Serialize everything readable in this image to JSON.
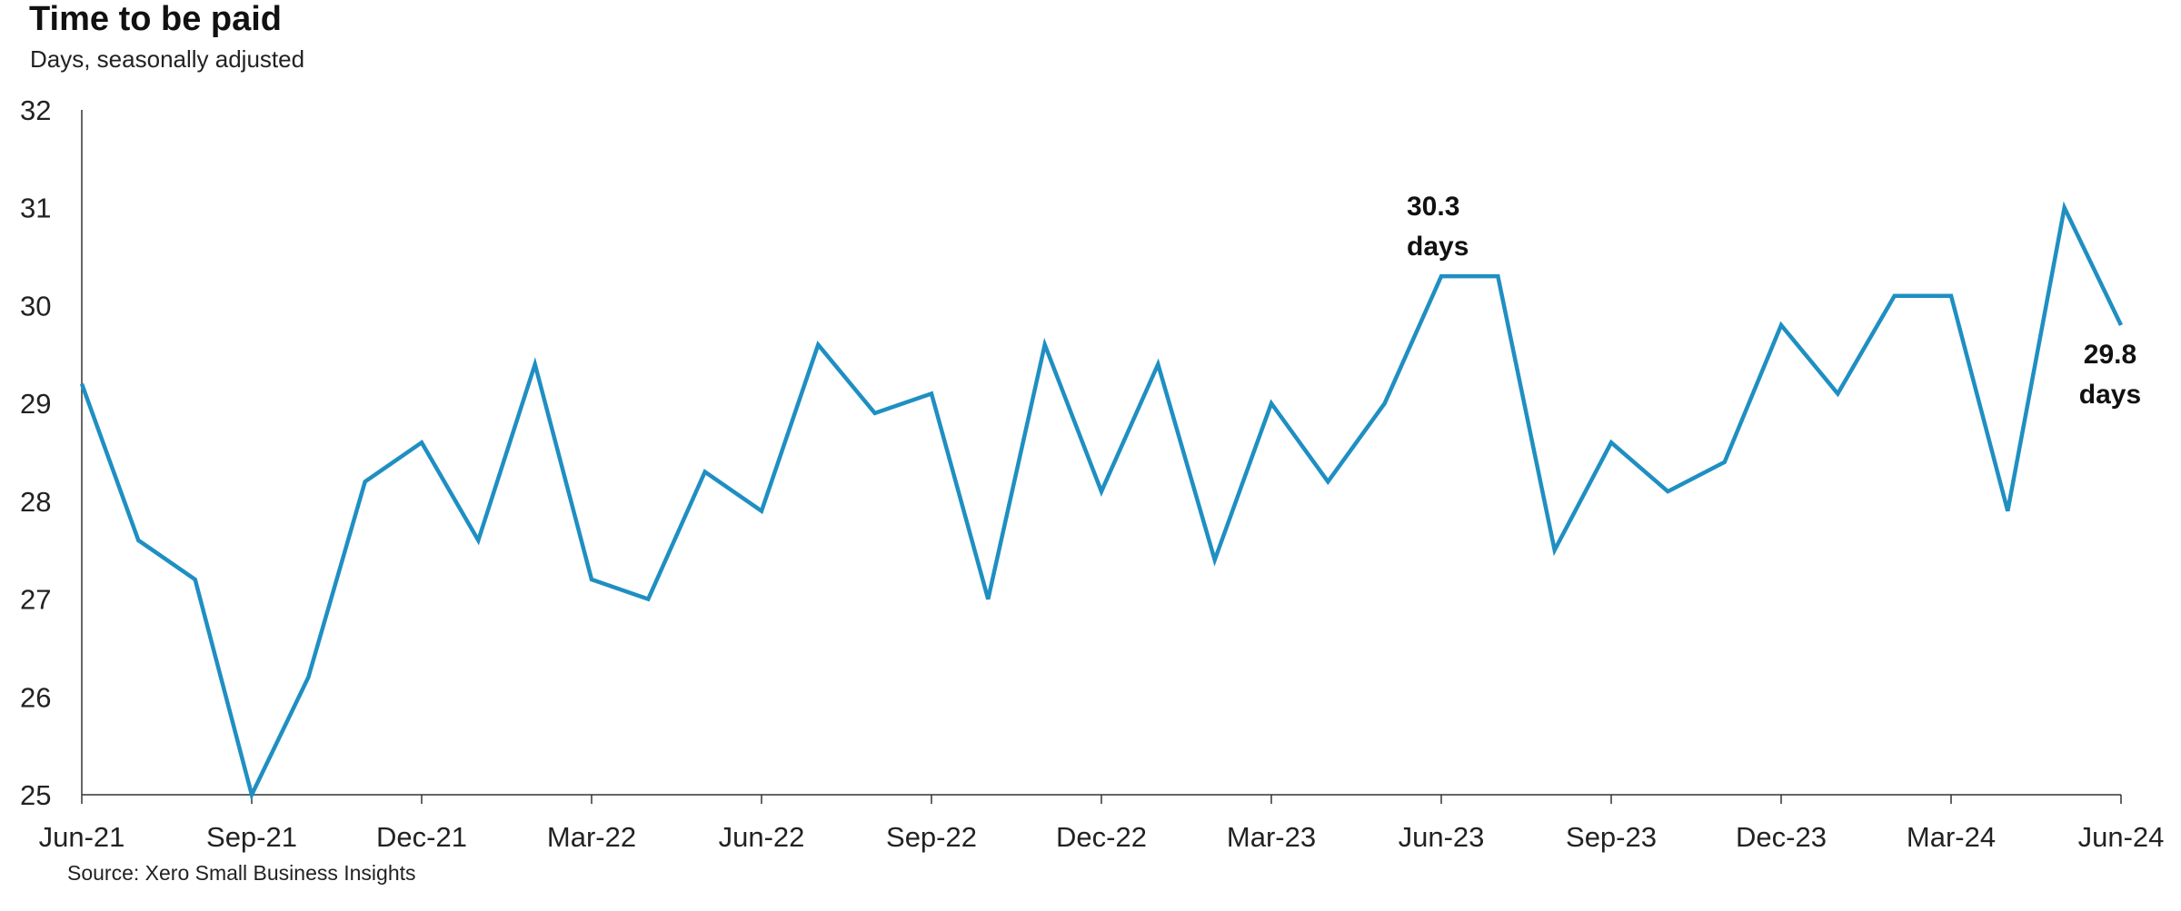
{
  "chart_data": {
    "type": "line",
    "title": "Time to be paid",
    "subtitle": "Days, seasonally adjusted",
    "source": "Source: Xero Small Business Insights",
    "ylim": [
      25,
      32
    ],
    "yticks": [
      "32",
      "31",
      "30",
      "29",
      "28",
      "27",
      "26",
      "25"
    ],
    "x_tick_labels": [
      "Jun-21",
      "Sep-21",
      "Dec-21",
      "Mar-22",
      "Jun-22",
      "Sep-22",
      "Dec-22",
      "Mar-23",
      "Jun-23",
      "Sep-23",
      "Dec-23",
      "Mar-24",
      "Jun-24"
    ],
    "grid": false,
    "series": [
      {
        "color": "#1f8fc2",
        "x": [
          "Jun-21",
          "Jul-21",
          "Aug-21",
          "Sep-21",
          "Oct-21",
          "Nov-21",
          "Dec-21",
          "Jan-22",
          "Feb-22",
          "Mar-22",
          "Apr-22",
          "May-22",
          "Jun-22",
          "Jul-22",
          "Aug-22",
          "Sep-22",
          "Oct-22",
          "Nov-22",
          "Dec-22",
          "Jan-23",
          "Feb-23",
          "Mar-23",
          "Apr-23",
          "May-23",
          "Jun-23",
          "Jul-23",
          "Aug-23",
          "Sep-23",
          "Oct-23",
          "Nov-23",
          "Dec-23",
          "Jan-24",
          "Feb-24",
          "Mar-24",
          "Apr-24",
          "May-24",
          "Jun-24"
        ],
        "values": [
          29.2,
          27.6,
          27.2,
          25.0,
          26.2,
          28.2,
          28.6,
          27.6,
          29.4,
          27.2,
          27.0,
          28.3,
          27.9,
          29.6,
          28.9,
          29.1,
          27.0,
          29.6,
          28.1,
          29.4,
          27.4,
          29.0,
          28.2,
          29.0,
          30.3,
          30.3,
          27.5,
          28.6,
          28.1,
          28.4,
          29.8,
          29.1,
          30.1,
          30.1,
          27.9,
          31.0,
          29.8
        ]
      }
    ],
    "annotations": [
      {
        "value_line1": "30.3",
        "value_line2": "days",
        "at": "Jun-23"
      },
      {
        "value_line1": "29.8",
        "value_line2": "days",
        "at": "Jun-24"
      }
    ]
  }
}
